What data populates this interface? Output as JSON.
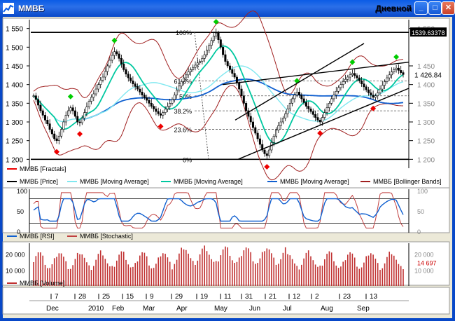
{
  "window": {
    "title": "ММВБ",
    "period": "Дневной",
    "buttons": [
      "minimize",
      "maximize",
      "close"
    ]
  },
  "colors": {
    "titlebar": "#0a5ce6",
    "price": "#000000",
    "fractal_up": "#00cc00",
    "fractal_down": "#ee0000",
    "ma_fast": "#00c8a0",
    "ma_mid": "#80e8f0",
    "ma_slow": "#1060d0",
    "bollinger": "#a02020",
    "rsi": "#1060d0",
    "stochastic": "#c04040",
    "volume": "#c03030"
  },
  "price_panel": {
    "y_labels_left": [
      "1 550",
      "1 500",
      "1 450",
      "1 400",
      "1 350",
      "1 300",
      "1 250",
      "1 200"
    ],
    "y_labels_right": [
      "1 550",
      "1 450",
      "1 400",
      "1 350",
      "1 300",
      "1 250",
      "1 200"
    ],
    "last_price": "1 426.84",
    "hline_value": "1539.63378",
    "fib_labels": [
      "100%",
      "61.8%",
      "50%",
      "38.2%",
      "23.6%",
      "0%"
    ],
    "legend": [
      "ММВБ [Fractals]",
      "ММВБ [Price]",
      "ММВБ [Moving Average]",
      "ММВБ [Moving Average]",
      "ММВБ [Moving Average]",
      "ММВБ [Bollinger Bands]"
    ]
  },
  "osc_panel": {
    "y_labels_left": [
      "100",
      "50",
      "0"
    ],
    "y_labels_right": [
      "100",
      "50",
      "0"
    ],
    "legend": [
      "ММВБ [RSI]",
      "ММВБ [Stochastic]"
    ]
  },
  "volume_panel": {
    "y_labels_left": [
      "20 000",
      "10 000"
    ],
    "y_labels_right": [
      "20 000",
      "10 000"
    ],
    "last_volume": "14 697",
    "legend": [
      "ММВБ [Volume]"
    ]
  },
  "time_axis": {
    "days": [
      "7",
      "28",
      "25",
      "15",
      "9",
      "29",
      "19",
      "11",
      "31",
      "21",
      "12",
      "2",
      "23",
      "13"
    ],
    "months": [
      "Dec",
      "2010",
      "Feb",
      "Mar",
      "Apr",
      "May",
      "Jun",
      "Jul",
      "Aug",
      "Sep"
    ]
  },
  "chart_data": {
    "type": "candlestick",
    "x_range": [
      "2009-12-01",
      "2010-09-20"
    ],
    "ylim": [
      1180,
      1570
    ],
    "closes": [
      1370,
      1360,
      1345,
      1330,
      1318,
      1305,
      1295,
      1280,
      1268,
      1255,
      1250,
      1262,
      1280,
      1300,
      1318,
      1330,
      1338,
      1330,
      1315,
      1300,
      1298,
      1310,
      1325,
      1340,
      1355,
      1366,
      1375,
      1388,
      1400,
      1412,
      1420,
      1435,
      1450,
      1465,
      1478,
      1488,
      1482,
      1470,
      1455,
      1440,
      1428,
      1418,
      1410,
      1402,
      1395,
      1388,
      1380,
      1372,
      1365,
      1358,
      1350,
      1342,
      1335,
      1328,
      1322,
      1318,
      1325,
      1334,
      1342,
      1350,
      1360,
      1372,
      1385,
      1396,
      1408,
      1418,
      1426,
      1434,
      1440,
      1446,
      1452,
      1458,
      1462,
      1470,
      1480,
      1492,
      1505,
      1518,
      1530,
      1538,
      1520,
      1500,
      1480,
      1462,
      1450,
      1440,
      1430,
      1420,
      1405,
      1388,
      1370,
      1350,
      1330,
      1315,
      1300,
      1285,
      1270,
      1255,
      1240,
      1225,
      1215,
      1210,
      1225,
      1245,
      1262,
      1278,
      1290,
      1300,
      1310,
      1322,
      1335,
      1350,
      1362,
      1372,
      1380,
      1372,
      1362,
      1352,
      1342,
      1335,
      1328,
      1320,
      1312,
      1305,
      1300,
      1312,
      1325,
      1338,
      1350,
      1362,
      1372,
      1382,
      1392,
      1400,
      1408,
      1414,
      1420,
      1426,
      1430,
      1424,
      1418,
      1410,
      1402,
      1394,
      1386,
      1378,
      1372,
      1366,
      1370,
      1378,
      1388,
      1398,
      1408,
      1418,
      1426,
      1434,
      1440,
      1444,
      1438,
      1432,
      1427
    ],
    "fibonacci": {
      "high": 1539.63,
      "low": 1200
    },
    "rsi_last": 52,
    "volume_last": 14697
  }
}
